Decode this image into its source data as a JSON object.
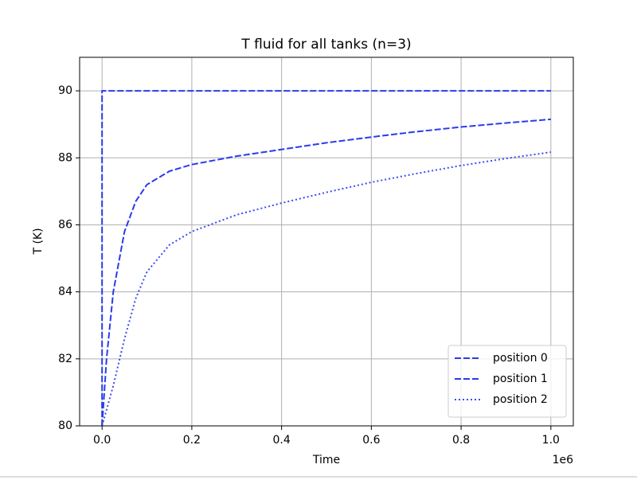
{
  "chart_data": {
    "type": "line",
    "title": "T fluid for all tanks (n=3)",
    "xlabel": "Time",
    "ylabel": "T (K)",
    "x_offset_label": "1e6",
    "xlim": [
      -50000,
      1050000
    ],
    "ylim": [
      80,
      91
    ],
    "xticks": [
      {
        "value": 0,
        "label": "0.0"
      },
      {
        "value": 200000,
        "label": "0.2"
      },
      {
        "value": 400000,
        "label": "0.4"
      },
      {
        "value": 600000,
        "label": "0.6"
      },
      {
        "value": 800000,
        "label": "0.8"
      },
      {
        "value": 1000000,
        "label": "1.0"
      }
    ],
    "yticks": [
      80,
      82,
      84,
      86,
      88,
      90
    ],
    "grid": true,
    "legend": "lower right",
    "series": [
      {
        "name": "position 0",
        "color": "#2a3bee",
        "linestyle": "dashed",
        "x": [
          0,
          0,
          1000000
        ],
        "values": [
          80,
          90,
          90
        ]
      },
      {
        "name": "position 1",
        "color": "#2a3bee",
        "linestyle": "dashed",
        "x": [
          0,
          10000,
          25000,
          50000,
          75000,
          100000,
          150000,
          200000,
          300000,
          400000,
          500000,
          600000,
          700000,
          800000,
          900000,
          1000000
        ],
        "values": [
          80,
          82,
          84,
          85.8,
          86.7,
          87.2,
          87.6,
          87.8,
          88.05,
          88.25,
          88.45,
          88.62,
          88.78,
          88.92,
          89.04,
          89.15
        ]
      },
      {
        "name": "position 2",
        "color": "#3a4cf0",
        "linestyle": "dotted",
        "x": [
          0,
          25000,
          50000,
          75000,
          100000,
          150000,
          200000,
          300000,
          400000,
          500000,
          600000,
          700000,
          800000,
          900000,
          1000000
        ],
        "values": [
          80,
          81.2,
          82.6,
          83.8,
          84.6,
          85.4,
          85.8,
          86.3,
          86.65,
          86.97,
          87.27,
          87.53,
          87.77,
          87.98,
          88.17
        ]
      }
    ]
  }
}
